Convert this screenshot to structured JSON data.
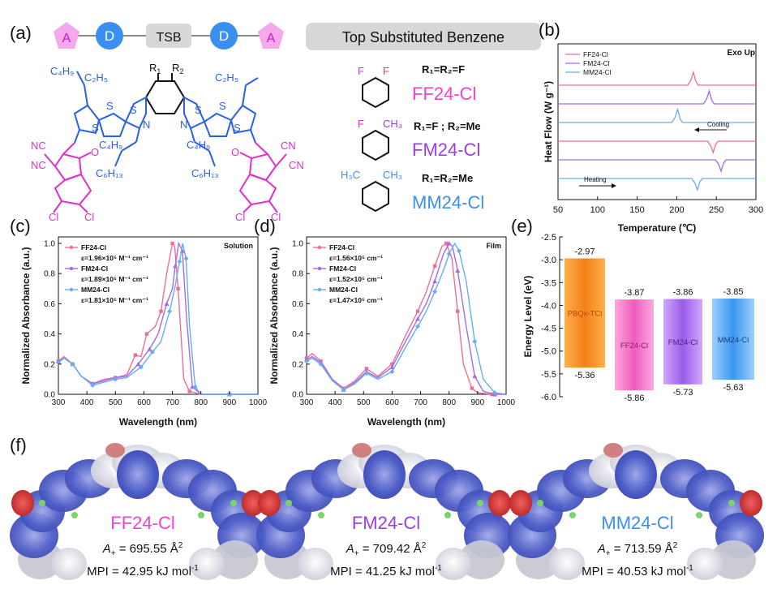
{
  "panel_labels": {
    "a": "(a)",
    "b": "(b)",
    "c": "(c)",
    "d": "(d)",
    "e": "(e)",
    "f": "(f)"
  },
  "panel_a": {
    "chain": [
      "A",
      "D",
      "TSB",
      "D",
      "A"
    ],
    "banner": "Top Substituted Benzene",
    "r1": "R",
    "r1_sub": "1",
    "r2": "R",
    "r2_sub": "2",
    "chem_labels": {
      "c4h9": "C₄H₉",
      "c2h5": "C₂H₅",
      "c6h13": "C₆H₁₃",
      "nc": "NC",
      "cn": "CN",
      "o": "O",
      "cl": "Cl",
      "s": "S",
      "n": "N"
    },
    "variants": [
      {
        "name": "FF24-Cl",
        "rule": "R₁=R₂=F",
        "sub_left": "F",
        "sub_right": "F",
        "color": "#ee44cc"
      },
      {
        "name": "FM24-Cl",
        "rule": "R₁=F ; R₂=Me",
        "sub_left": "F",
        "sub_right": "CH₃",
        "color": "#9a3ee6"
      },
      {
        "name": "MM24-Cl",
        "rule": "R₁=R₂=Me",
        "sub_left": "H₃C",
        "sub_right": "CH₃",
        "color": "#3a8ff2"
      }
    ]
  },
  "chart_data": [
    {
      "panel": "b",
      "type": "line",
      "xlabel": "Temperature (℃)",
      "ylabel": "Heat Flow (W g⁻¹)",
      "corner_label": "Exo Up",
      "xlim": [
        50,
        300
      ],
      "xticks": [
        50,
        100,
        150,
        200,
        250,
        300
      ],
      "annotations": [
        "Cooling",
        "Heating"
      ],
      "legend": [
        "FF24-Cl",
        "FM24-Cl",
        "MM24-Cl"
      ],
      "colors": [
        "#ec6f97",
        "#a56ae6",
        "#67aef0"
      ],
      "traces": [
        {
          "name": "FF24-Cl",
          "segment": "cooling",
          "peak_T": 221,
          "peak_dir": "up"
        },
        {
          "name": "FM24-Cl",
          "segment": "cooling",
          "peak_T": 241,
          "peak_dir": "up"
        },
        {
          "name": "MM24-Cl",
          "segment": "cooling",
          "peak_T": 201,
          "peak_dir": "up"
        },
        {
          "name": "FF24-Cl",
          "segment": "heating",
          "peak_T": 246,
          "peak_dir": "down"
        },
        {
          "name": "FM24-Cl",
          "segment": "heating",
          "peak_T": 256,
          "peak_dir": "down"
        },
        {
          "name": "MM24-Cl",
          "segment": "heating",
          "peak_T": 226,
          "peak_dir": "down"
        }
      ]
    },
    {
      "panel": "c",
      "type": "line",
      "corner_label": "Solution",
      "xlabel": "Wavelength (nm)",
      "ylabel": "Normalized Absorbance (a.u.)",
      "xlim": [
        300,
        1000
      ],
      "ylim": [
        0,
        1.0
      ],
      "xticks": [
        300,
        400,
        500,
        600,
        700,
        800,
        900,
        1000
      ],
      "yticks": [
        0.0,
        0.2,
        0.4,
        0.6,
        0.8,
        1.0
      ],
      "legend": [
        "FF24-Cl",
        "ε=1.96×10⁵ M⁻¹ cm⁻¹",
        "FM24-Cl",
        "ε=1.89×10⁵ M⁻¹ cm⁻¹",
        "MM24-Cl",
        "ε=1.81×10⁵ M⁻¹ cm⁻¹"
      ],
      "series": [
        {
          "name": "FF24-Cl",
          "color": "#ec6f97",
          "x": [
            300,
            320,
            350,
            380,
            420,
            460,
            500,
            540,
            570,
            590,
            610,
            640,
            660,
            680,
            700,
            708,
            720,
            740,
            760,
            800,
            900,
            1000
          ],
          "y": [
            0.22,
            0.25,
            0.2,
            0.12,
            0.07,
            0.1,
            0.11,
            0.13,
            0.26,
            0.25,
            0.4,
            0.45,
            0.55,
            0.8,
            1.0,
            0.98,
            0.7,
            0.1,
            0.02,
            0.0,
            0.0,
            0.0
          ]
        },
        {
          "name": "FM24-Cl",
          "color": "#a56ae6",
          "x": [
            300,
            320,
            350,
            380,
            420,
            460,
            500,
            540,
            580,
            600,
            620,
            650,
            680,
            700,
            710,
            722,
            735,
            750,
            770,
            800,
            900,
            1000
          ],
          "y": [
            0.22,
            0.24,
            0.2,
            0.12,
            0.07,
            0.09,
            0.11,
            0.12,
            0.2,
            0.25,
            0.3,
            0.4,
            0.6,
            0.7,
            0.85,
            1.0,
            0.95,
            0.5,
            0.05,
            0.0,
            0.0,
            0.0
          ]
        },
        {
          "name": "MM24-Cl",
          "color": "#67aef0",
          "x": [
            300,
            320,
            350,
            380,
            420,
            460,
            500,
            540,
            590,
            610,
            630,
            660,
            690,
            710,
            725,
            736,
            748,
            760,
            780,
            800,
            900,
            1000
          ],
          "y": [
            0.21,
            0.24,
            0.2,
            0.12,
            0.06,
            0.08,
            0.1,
            0.11,
            0.18,
            0.23,
            0.28,
            0.35,
            0.55,
            0.72,
            0.88,
            1.0,
            0.9,
            0.45,
            0.05,
            0.0,
            0.0,
            0.0
          ]
        }
      ]
    },
    {
      "panel": "d",
      "type": "line",
      "corner_label": "Film",
      "xlabel": "Wavelength (nm)",
      "ylabel": "Normalized Absorbance (a.u.)",
      "xlim": [
        300,
        1000
      ],
      "ylim": [
        0,
        1.0
      ],
      "xticks": [
        300,
        400,
        500,
        600,
        700,
        800,
        900,
        1000
      ],
      "yticks": [
        0.0,
        0.2,
        0.4,
        0.6,
        0.8,
        1.0
      ],
      "legend": [
        "FF24-Cl",
        "ε=1.56×10⁵ cm⁻¹",
        "FM24-Cl",
        "ε=1.52×10⁵ cm⁻¹",
        "MM24-Cl",
        "ε=1.47×10⁵ cm⁻¹"
      ],
      "series": [
        {
          "name": "FF24-Cl",
          "color": "#ec6f97",
          "x": [
            300,
            320,
            350,
            390,
            430,
            470,
            510,
            550,
            600,
            650,
            690,
            720,
            750,
            775,
            790,
            810,
            830,
            850,
            880,
            900,
            950,
            1000
          ],
          "y": [
            0.24,
            0.27,
            0.22,
            0.1,
            0.04,
            0.09,
            0.17,
            0.12,
            0.2,
            0.4,
            0.55,
            0.68,
            0.85,
            0.98,
            1.0,
            0.9,
            0.55,
            0.2,
            0.04,
            0.01,
            0.0,
            0.0
          ]
        },
        {
          "name": "FM24-Cl",
          "color": "#a56ae6",
          "x": [
            300,
            320,
            350,
            390,
            430,
            470,
            510,
            550,
            600,
            650,
            690,
            720,
            750,
            780,
            800,
            812,
            830,
            860,
            890,
            920,
            960,
            1000
          ],
          "y": [
            0.23,
            0.25,
            0.21,
            0.1,
            0.03,
            0.08,
            0.15,
            0.11,
            0.18,
            0.36,
            0.5,
            0.6,
            0.75,
            0.93,
            1.0,
            0.98,
            0.82,
            0.45,
            0.12,
            0.02,
            0.0,
            0.0
          ]
        },
        {
          "name": "MM24-Cl",
          "color": "#67aef0",
          "x": [
            300,
            320,
            350,
            390,
            430,
            470,
            510,
            550,
            600,
            650,
            690,
            720,
            750,
            780,
            800,
            820,
            835,
            860,
            890,
            920,
            960,
            1000
          ],
          "y": [
            0.22,
            0.24,
            0.2,
            0.09,
            0.03,
            0.07,
            0.14,
            0.1,
            0.15,
            0.32,
            0.45,
            0.55,
            0.68,
            0.82,
            0.93,
            1.0,
            0.95,
            0.75,
            0.35,
            0.1,
            0.01,
            0.0
          ]
        }
      ]
    },
    {
      "panel": "e",
      "type": "bar",
      "ylabel": "Energy Level (eV)",
      "ylim": [
        -6.0,
        -2.5
      ],
      "yticks": [
        -2.5,
        -3.0,
        -3.5,
        -4.0,
        -4.5,
        -5.0,
        -5.5,
        -6.0
      ],
      "bars": [
        {
          "name": "PBQx-TCl",
          "lumo": -2.97,
          "homo": -5.36,
          "lumo_label": "-2.97",
          "homo_label": "-5.36",
          "color": "#f08a1f"
        },
        {
          "name": "FF24-Cl",
          "lumo": -3.87,
          "homo": -5.86,
          "lumo_label": "-3.87",
          "homo_label": "-5.86",
          "color": "#ee6fc4"
        },
        {
          "name": "FM24-Cl",
          "lumo": -3.86,
          "homo": -5.73,
          "lumo_label": "-3.86",
          "homo_label": "-5.73",
          "color": "#a06ae8"
        },
        {
          "name": "MM24-Cl",
          "lumo": -3.85,
          "homo": -5.63,
          "lumo_label": "-3.85",
          "homo_label": "-5.63",
          "color": "#4aa3f2"
        }
      ]
    }
  ],
  "panel_f": {
    "molecules": [
      {
        "name": "FF24-Cl",
        "name_color": "#ee44cc",
        "a_label": "A",
        "a_sub": "+",
        "a_value": " = 695.55 Å",
        "a_sup": "2",
        "mpi": "MPI = 42.95 kJ mol",
        "mpi_sup": "-1"
      },
      {
        "name": "FM24-Cl",
        "name_color": "#9a3ee6",
        "a_label": "A",
        "a_sub": "+",
        "a_value": " = 709.42 Å",
        "a_sup": "2",
        "mpi": "MPI = 41.25 kJ mol",
        "mpi_sup": "-1"
      },
      {
        "name": "MM24-Cl",
        "name_color": "#3a8ff2",
        "a_label": "A",
        "a_sub": "+",
        "a_value": " = 713.59 Å",
        "a_sup": "2",
        "mpi": "MPI = 40.53 kJ mol",
        "mpi_sup": "-1"
      }
    ]
  }
}
